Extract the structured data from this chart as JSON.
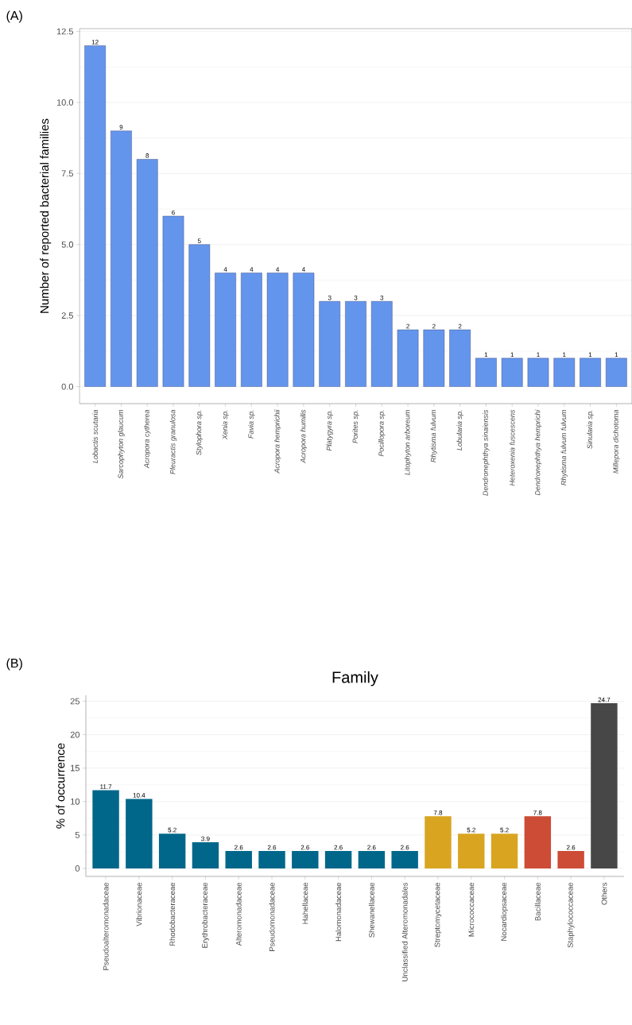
{
  "chart_data": [
    {
      "type": "bar",
      "ylabel": "Number of reported bacterial families",
      "categories": [
        "Lobactis scutaria",
        "Sarcophyton glaucum",
        "Acropora cytherea",
        "Pleuractis granulosa",
        "Stylophora sp.",
        "Xenia sp.",
        "Favia sp.",
        "Acropora hemprichii",
        "Acropora humilis",
        "Platygyra sp.",
        "Porites sp.",
        "Pocillopora sp.",
        "Litophyton arboreum",
        "Rhytisma fulvum",
        "Lobularia sp.",
        "Dendronephthya sinaiensis",
        "Heteroxenia fuscescens",
        "Dendronephthya hemprichi",
        "Rhytisma fulvum fulvum",
        "Sinularia sp.",
        "Millepora dichotoma"
      ],
      "values": [
        12,
        9,
        8,
        6,
        5,
        4,
        4,
        4,
        4,
        3,
        3,
        3,
        2,
        2,
        2,
        1,
        1,
        1,
        1,
        1,
        1
      ],
      "color": "#6495ed",
      "ylim": [
        -0.6,
        12.6
      ],
      "yticks": [
        {
          "value": 0,
          "label": "0.0"
        },
        {
          "value": 2.5,
          "label": "2.5"
        },
        {
          "value": 5,
          "label": "5.0"
        },
        {
          "value": 7.5,
          "label": "7.5"
        },
        {
          "value": 10,
          "label": "10.0"
        },
        {
          "value": 12.5,
          "label": "12.5"
        }
      ],
      "grid": "y",
      "data_labels": true,
      "annotations": [
        "(A)"
      ]
    },
    {
      "type": "bar",
      "title": "Family",
      "ylabel": "% of occurrence",
      "categories": [
        "Pseudoalteromonadaceae",
        "Vibrionaceae",
        "Rhodobacteraceae",
        "Erythrobacteraceae",
        "Alteromonadaceae",
        "Pseudomonadaceae",
        "Hahellaceae",
        "Halomonadaceae",
        "Shewanellaceae",
        "Unclassified Alteromonadales",
        "Streptomycetaceae",
        "Micrococcaceae",
        "Nocardiopsaceae",
        "Bacillaceae",
        "Staphylococcaceae",
        "Others"
      ],
      "values": [
        11.7,
        10.4,
        5.2,
        3.9,
        2.6,
        2.6,
        2.6,
        2.6,
        2.6,
        2.6,
        7.8,
        5.2,
        5.2,
        7.8,
        2.6,
        24.7
      ],
      "colors": [
        "#00678a",
        "#00678a",
        "#00678a",
        "#00678a",
        "#00678a",
        "#00678a",
        "#00678a",
        "#00678a",
        "#00678a",
        "#00678a",
        "#d9a521",
        "#d9a521",
        "#d9a521",
        "#cc4c35",
        "#cc4c35",
        "#474747"
      ],
      "ylim": [
        -1.2,
        25.9
      ],
      "yticks": [
        0,
        5,
        10,
        15,
        20,
        25
      ],
      "grid": "y",
      "data_labels": true,
      "annotations": [
        "(B)"
      ]
    }
  ]
}
